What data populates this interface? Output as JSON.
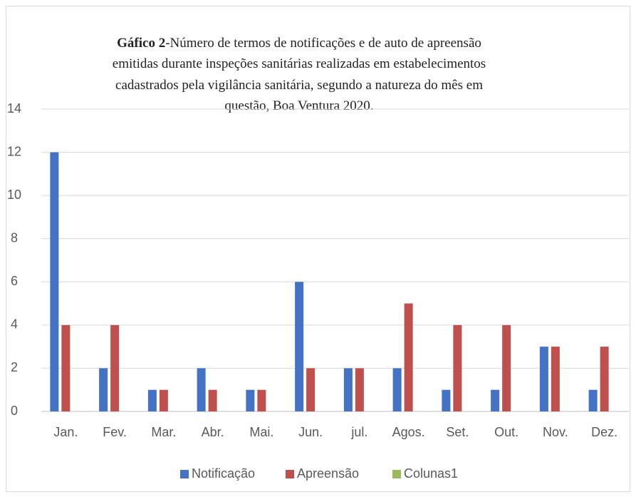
{
  "chart_data": {
    "type": "bar",
    "title_prefix": "Gáfico 2",
    "title_lines": [
      "-Número de termos de notificações  e de auto de apreensão",
      "emitidas durante inspeções sanitárias realizadas em estabelecimentos",
      "cadastrados pela vigilância sanitária, segundo a natureza do mês em",
      "questão, Boa Ventura 2020."
    ],
    "categories": [
      "Jan.",
      "Fev.",
      "Mar.",
      "Abr.",
      "Mai.",
      "Jun.",
      "jul.",
      "Agos.",
      "Set.",
      "Out.",
      "Nov.",
      "Dez."
    ],
    "series": [
      {
        "name": "Notificação",
        "color": "#4472c4",
        "values": [
          12,
          2,
          1,
          2,
          1,
          6,
          2,
          2,
          1,
          1,
          3,
          1
        ]
      },
      {
        "name": "Apreensão",
        "color": "#c0504d",
        "values": [
          4,
          4,
          1,
          1,
          1,
          2,
          2,
          5,
          4,
          4,
          3,
          3
        ]
      },
      {
        "name": "Colunas1",
        "color": "#9bbb59",
        "values": [
          null,
          null,
          null,
          null,
          null,
          null,
          null,
          null,
          null,
          null,
          null,
          null
        ]
      }
    ],
    "ylim": [
      0,
      14
    ],
    "yticks": [
      0,
      2,
      4,
      6,
      8,
      10,
      12,
      14
    ],
    "grid": true,
    "legend": "bottom"
  }
}
